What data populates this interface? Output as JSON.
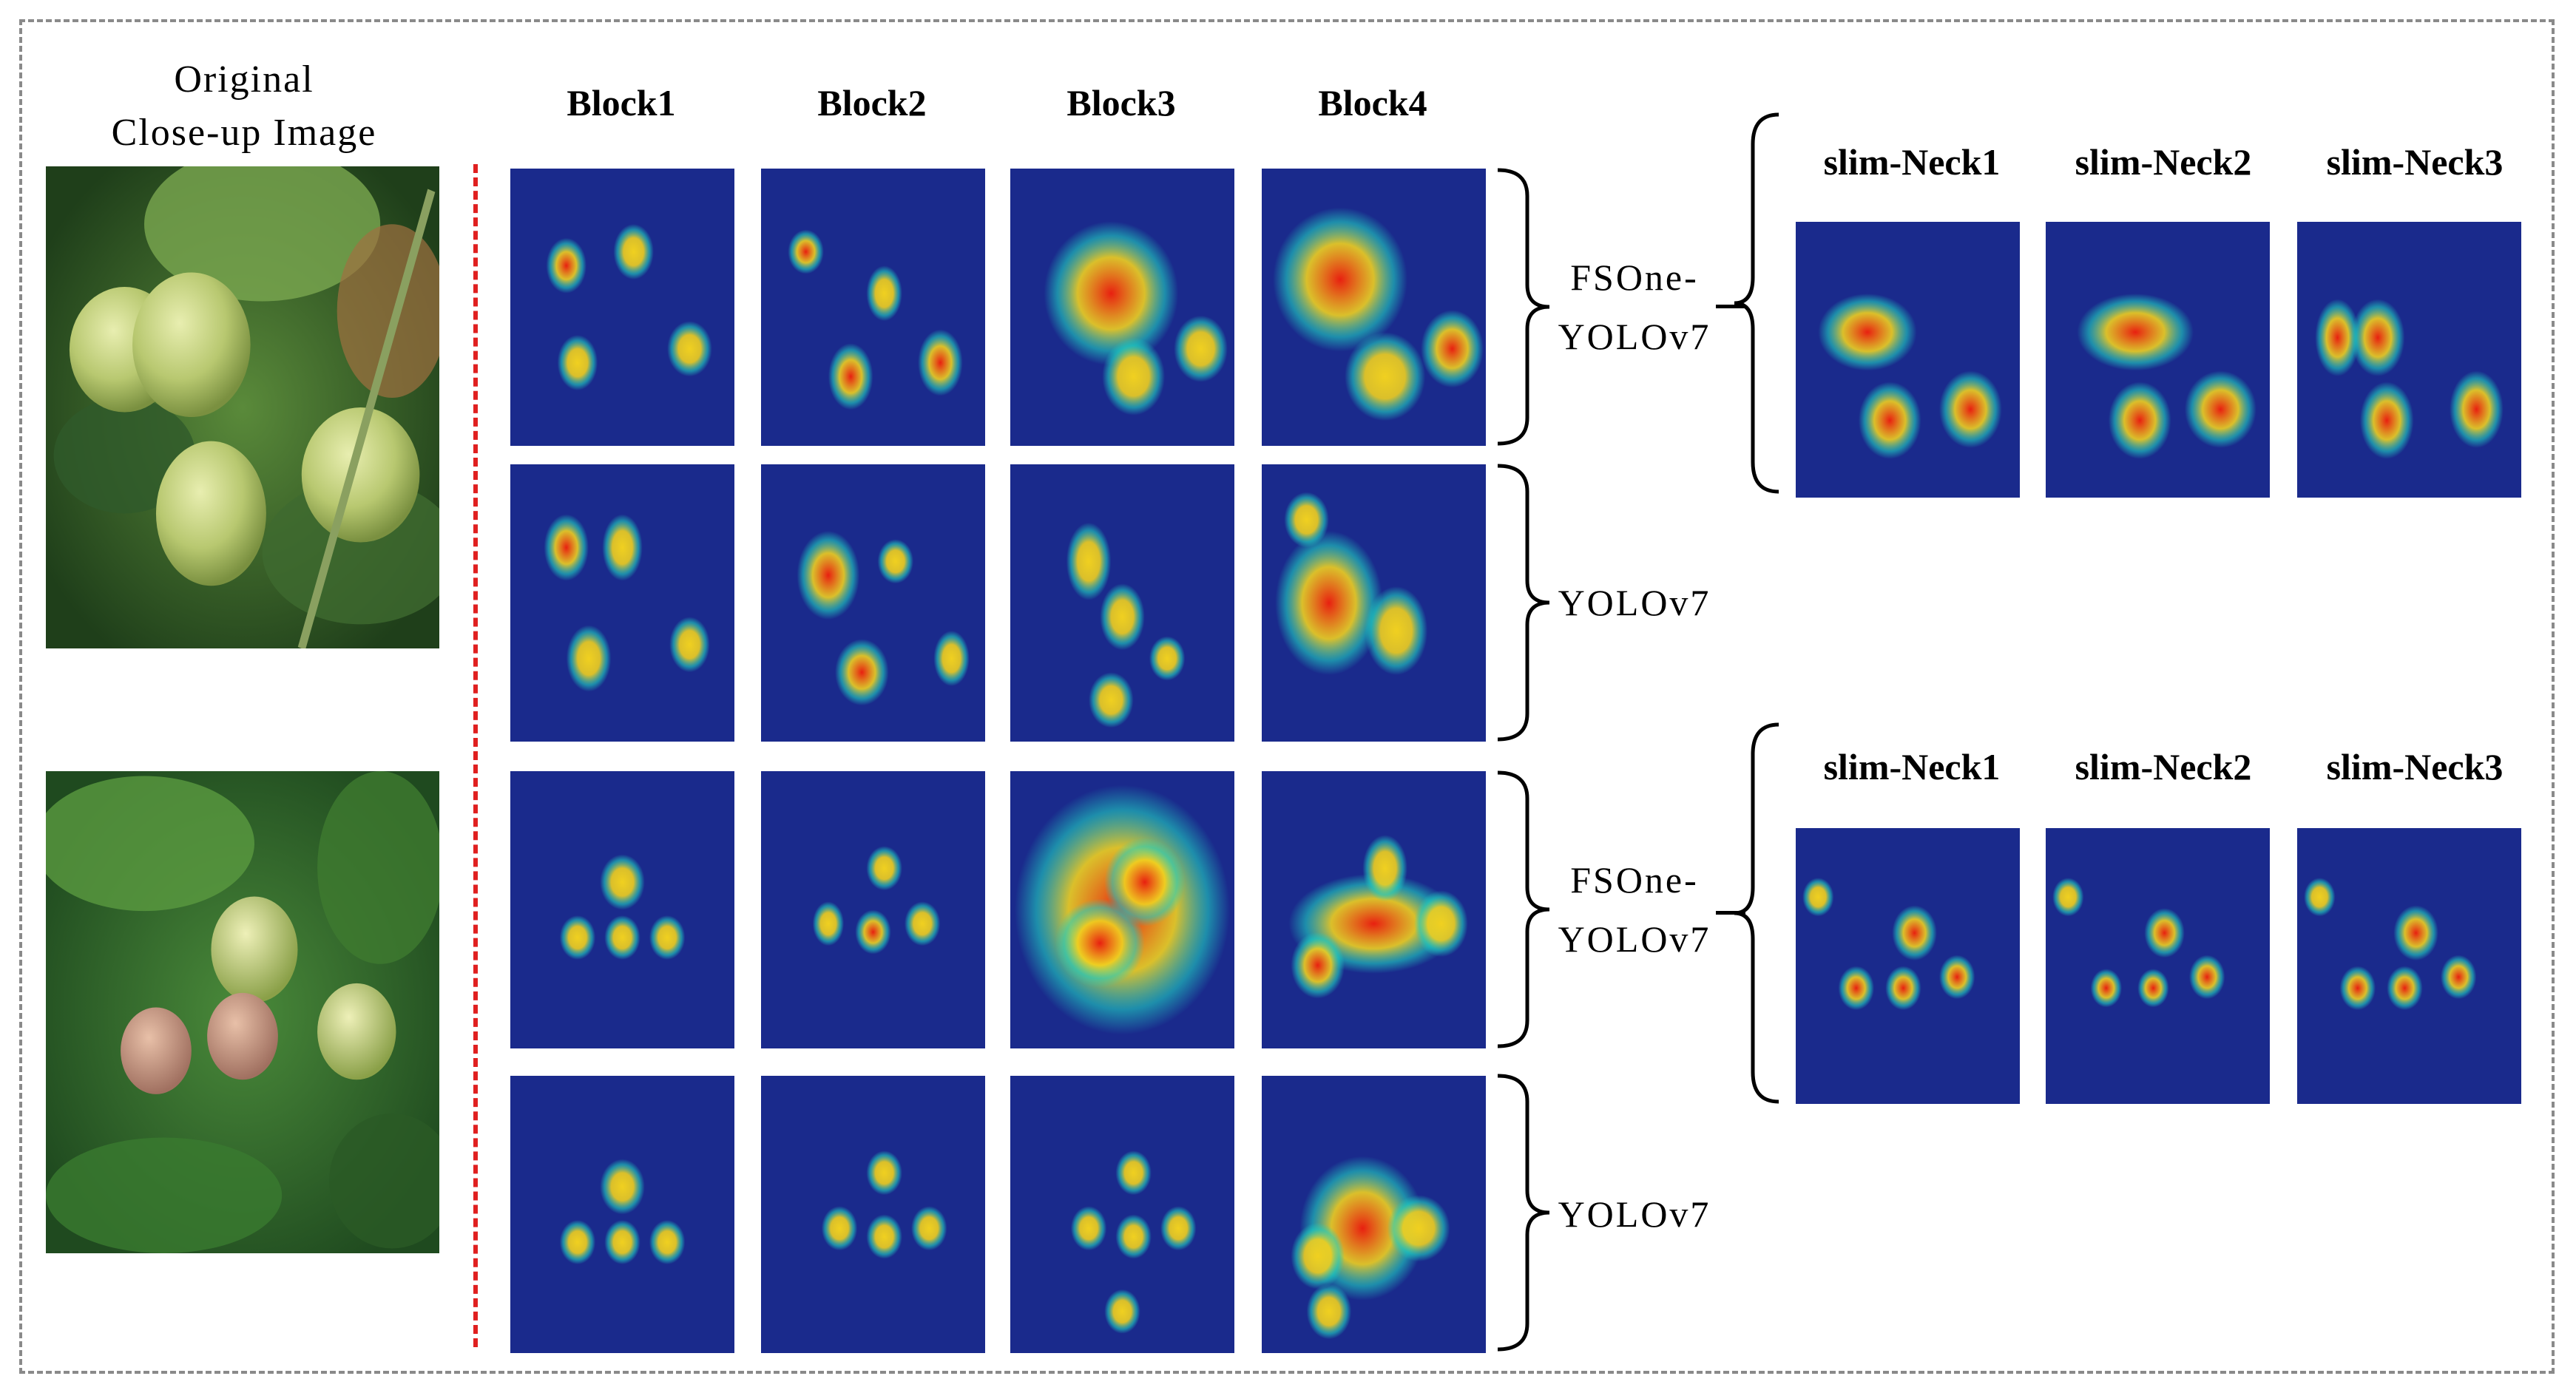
{
  "title_lines": [
    "Original",
    "Close-up Image"
  ],
  "block_headers": [
    "Block1",
    "Block2",
    "Block3",
    "Block4"
  ],
  "neck_headers_top": [
    "slim-Neck1",
    "slim-Neck2",
    "slim-Neck3"
  ],
  "neck_headers_bottom": [
    "slim-Neck1",
    "slim-Neck2",
    "slim-Neck3"
  ],
  "row_labels": [
    [
      "FSOne-",
      "YOLOv7"
    ],
    [
      "YOLOv7"
    ],
    [
      "FSOne-",
      "YOLOv7"
    ],
    [
      "YOLOv7"
    ]
  ],
  "colors": {
    "frame": "#8a8a8a",
    "divider": "#e02020",
    "heatmap_bg": "#1a2a8c",
    "heat_hot": "#e82010",
    "heat_warm": "#f0d020",
    "heat_cool": "#20d0c0"
  }
}
